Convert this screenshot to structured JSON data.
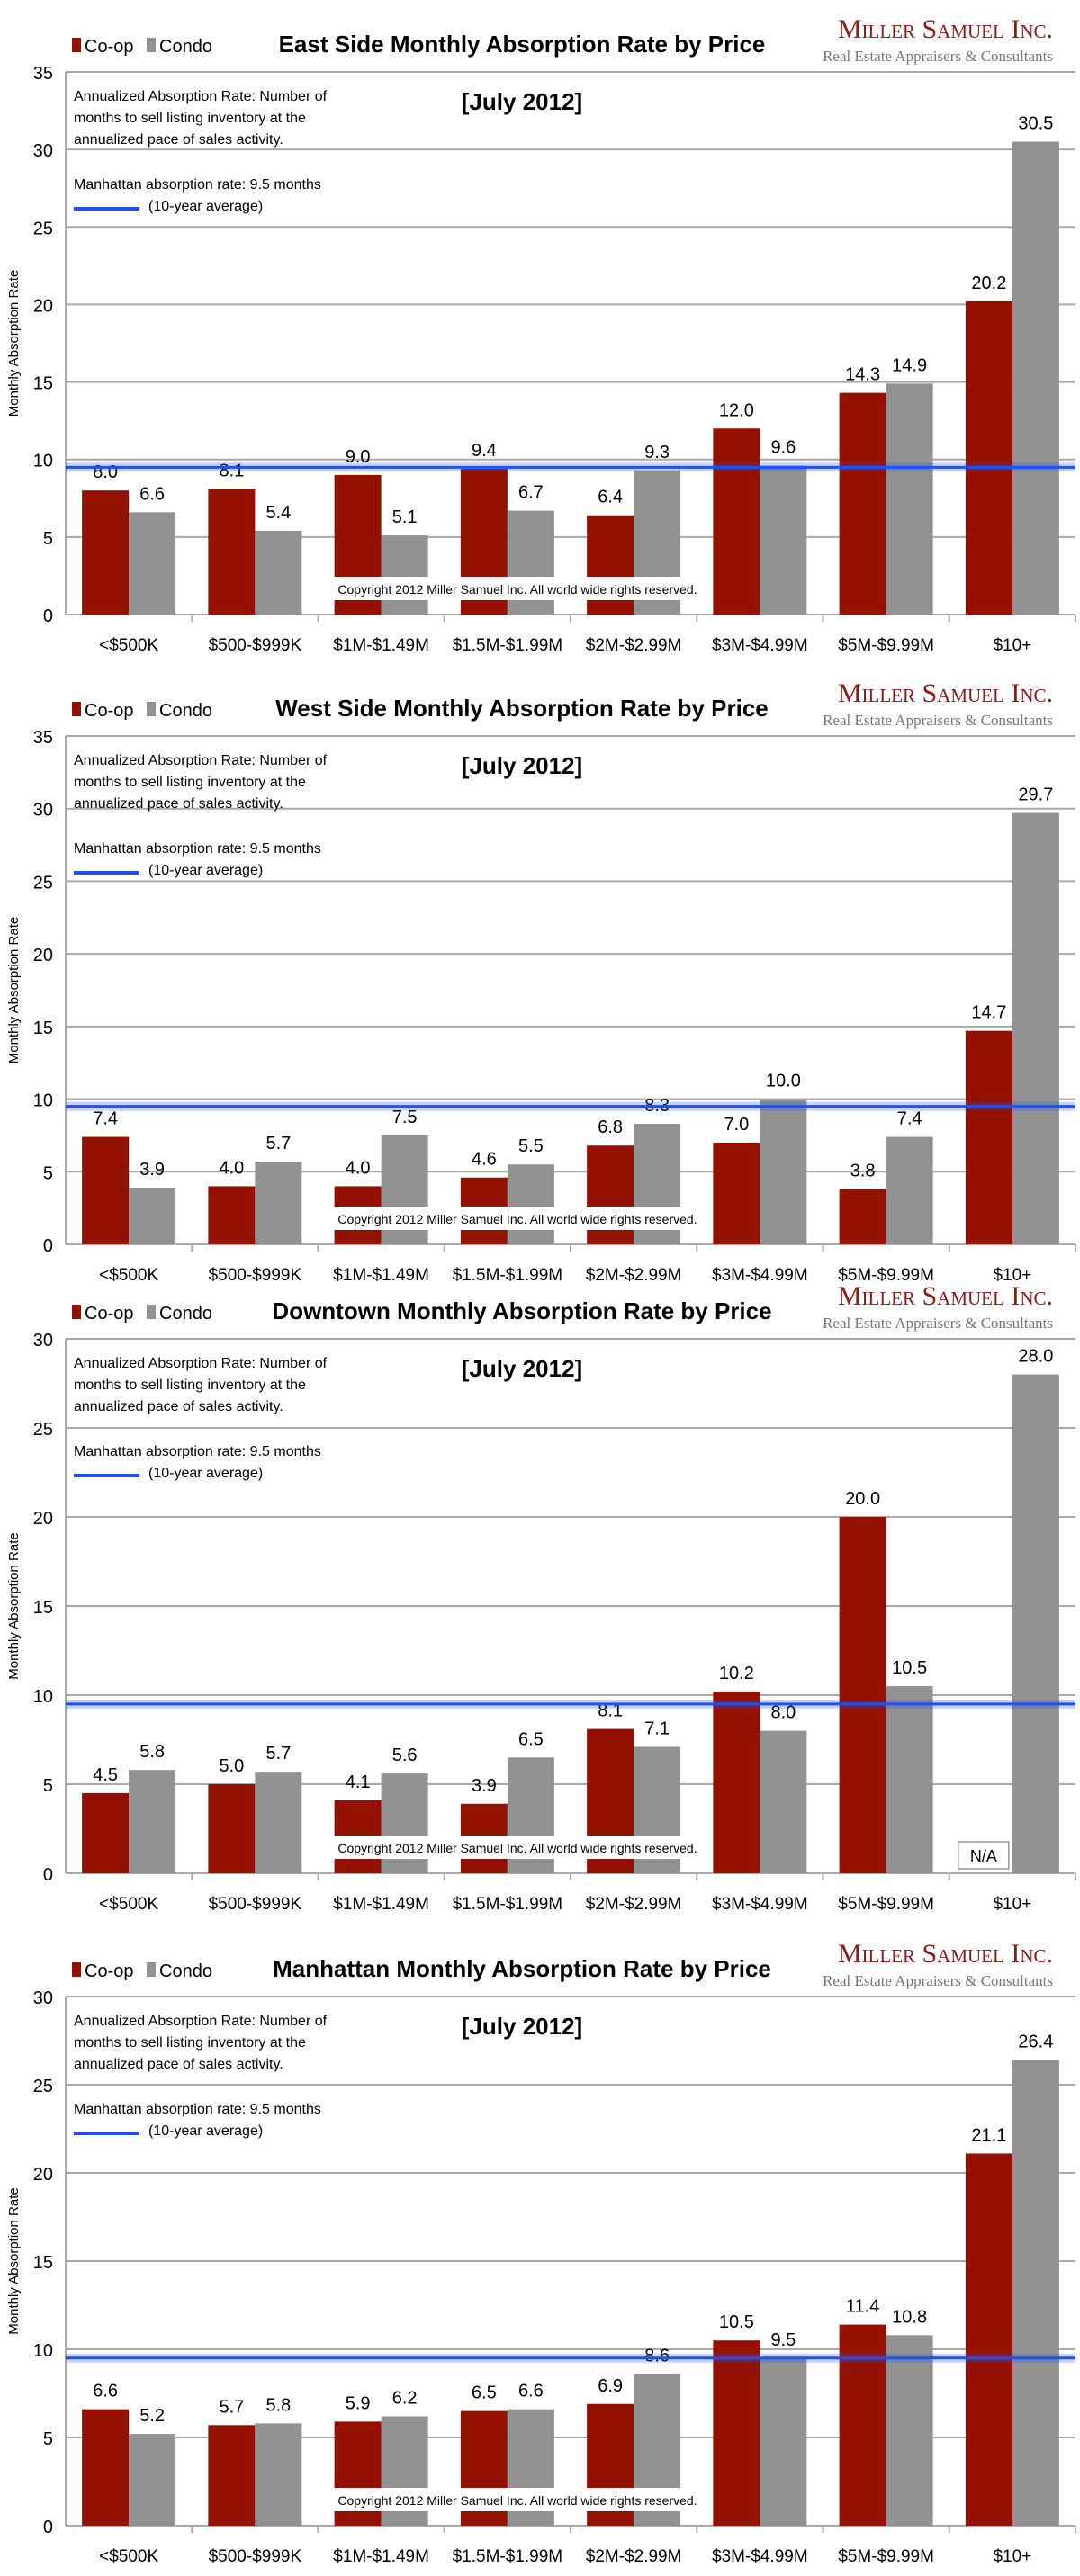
{
  "colors": {
    "coop": "#941100",
    "condo": "#929292",
    "reference_line": "#2050f0",
    "grid": "#aaaaaa",
    "logo": "#8b1a1a",
    "logo_sub": "#777777"
  },
  "logo": {
    "name": "Miller Samuel Inc.",
    "tagline": "Real Estate Appraisers & Consultants"
  },
  "chart_data": [
    {
      "type": "bar",
      "title": "East Side Monthly Absorption Rate by Price",
      "subtitle": "[July 2012]",
      "ylabel": "Monthly Absorption Rate",
      "ylim": [
        0,
        35
      ],
      "yticks": [
        0,
        5,
        10,
        15,
        20,
        25,
        30,
        35
      ],
      "grid": true,
      "legend": "top-left",
      "note": "Annualized Absorption Rate: Number of|months to sell listing inventory at the|annualized pace of sales activity.",
      "reference": {
        "value": 9.5,
        "label": "Manhattan absorption rate: 9.5 months",
        "label2": "(10-year average)"
      },
      "copyright": "Copyright 2012 Miller Samuel Inc.  All world wide rights reserved.",
      "categories": [
        "<$500K",
        "$500-$999K",
        "$1M-$1.49M",
        "$1.5M-$1.99M",
        "$2M-$2.99M",
        "$3M-$4.99M",
        "$5M-$9.99M",
        "$10+"
      ],
      "series": [
        {
          "name": "Co-op",
          "values": [
            8.0,
            8.1,
            9.0,
            9.4,
            6.4,
            12.0,
            14.3,
            20.2
          ]
        },
        {
          "name": "Condo",
          "values": [
            6.6,
            5.4,
            5.1,
            6.7,
            9.3,
            9.6,
            14.9,
            30.5
          ]
        }
      ]
    },
    {
      "type": "bar",
      "title": "West Side Monthly Absorption Rate by Price",
      "subtitle": "[July 2012]",
      "ylabel": "Monthly Absorption Rate",
      "ylim": [
        0,
        35
      ],
      "yticks": [
        0,
        5,
        10,
        15,
        20,
        25,
        30,
        35
      ],
      "grid": true,
      "legend": "top-left",
      "note": "Annualized Absorption Rate: Number of|months to sell listing inventory at the|annualized pace of sales activity.",
      "reference": {
        "value": 9.5,
        "label": "Manhattan absorption rate: 9.5 months",
        "label2": "(10-year average)"
      },
      "copyright": "Copyright 2012 Miller Samuel Inc.  All world wide rights reserved.",
      "categories": [
        "<$500K",
        "$500-$999K",
        "$1M-$1.49M",
        "$1.5M-$1.99M",
        "$2M-$2.99M",
        "$3M-$4.99M",
        "$5M-$9.99M",
        "$10+"
      ],
      "series": [
        {
          "name": "Co-op",
          "values": [
            7.4,
            4.0,
            4.0,
            4.6,
            6.8,
            7.0,
            3.8,
            14.7
          ]
        },
        {
          "name": "Condo",
          "values": [
            3.9,
            5.7,
            7.5,
            5.5,
            8.3,
            10.0,
            7.4,
            29.7
          ]
        }
      ]
    },
    {
      "type": "bar",
      "title": "Downtown Monthly Absorption Rate by Price",
      "subtitle": "[July 2012]",
      "ylabel": "Monthly Absorption Rate",
      "ylim": [
        0,
        30
      ],
      "yticks": [
        0,
        5,
        10,
        15,
        20,
        25,
        30
      ],
      "grid": true,
      "legend": "top-left",
      "note": "Annualized Absorption Rate: Number of|months to sell listing inventory at the|annualized pace of sales activity.",
      "reference": {
        "value": 9.5,
        "label": "Manhattan absorption rate: 9.5 months",
        "label2": "(10-year average)"
      },
      "copyright": "Copyright 2012 Miller Samuel Inc.  All world wide rights reserved.",
      "na_label": "N/A",
      "categories": [
        "<$500K",
        "$500-$999K",
        "$1M-$1.49M",
        "$1.5M-$1.99M",
        "$2M-$2.99M",
        "$3M-$4.99M",
        "$5M-$9.99M",
        "$10+"
      ],
      "series": [
        {
          "name": "Co-op",
          "values": [
            4.5,
            5.0,
            4.1,
            3.9,
            8.1,
            10.2,
            20.0,
            null
          ]
        },
        {
          "name": "Condo",
          "values": [
            5.8,
            5.7,
            5.6,
            6.5,
            7.1,
            8.0,
            10.5,
            28.0
          ]
        }
      ]
    },
    {
      "type": "bar",
      "title": "Manhattan Monthly Absorption Rate by Price",
      "subtitle": "[July 2012]",
      "ylabel": "Monthly Absorption Rate",
      "ylim": [
        0,
        30
      ],
      "yticks": [
        0,
        5,
        10,
        15,
        20,
        25,
        30
      ],
      "grid": true,
      "legend": "top-left",
      "note": "Annualized Absorption Rate: Number of|months to sell listing inventory at the|annualized pace of sales activity.",
      "reference": {
        "value": 9.5,
        "label": "Manhattan absorption rate: 9.5 months",
        "label2": "(10-year average)"
      },
      "copyright": "Copyright 2012 Miller Samuel Inc.  All world wide rights reserved.",
      "categories": [
        "<$500K",
        "$500-$999K",
        "$1M-$1.49M",
        "$1.5M-$1.99M",
        "$2M-$2.99M",
        "$3M-$4.99M",
        "$5M-$9.99M",
        "$10+"
      ],
      "series": [
        {
          "name": "Co-op",
          "values": [
            6.6,
            5.7,
            5.9,
            6.5,
            6.9,
            10.5,
            11.4,
            21.1
          ]
        },
        {
          "name": "Condo",
          "values": [
            5.2,
            5.8,
            6.2,
            6.6,
            8.6,
            9.5,
            10.8,
            26.4
          ]
        }
      ]
    }
  ]
}
